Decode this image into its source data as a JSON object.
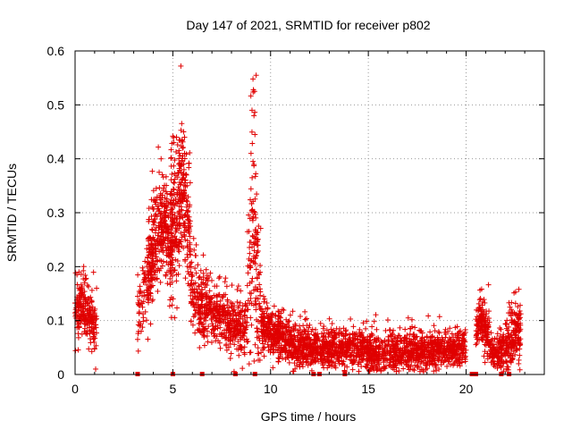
{
  "chart_data": {
    "type": "scatter",
    "title": "Day 147 of 2021, SRMTID for receiver p802",
    "xlabel": "GPS time / hours",
    "ylabel": "SRMTID / TECUs",
    "xlim": [
      0,
      24
    ],
    "ylim": [
      0,
      0.6
    ],
    "xticks": [
      0,
      5,
      10,
      15,
      20
    ],
    "yticks": [
      0,
      0.1,
      0.2,
      0.3,
      0.4,
      0.5,
      0.6
    ],
    "grid": true,
    "marker": "+",
    "series_color": "#e00000",
    "zero_markers_x": [
      3.2,
      5.0,
      6.5,
      8.2,
      9.2,
      12.2,
      12.5,
      13.8,
      20.3,
      20.5,
      21.8,
      22.2
    ],
    "segments": [
      {
        "x0": 0.0,
        "x1": 1.1,
        "n": 220,
        "bands": [
          [
            0.0,
            0.1
          ],
          [
            0.3,
            0.13
          ],
          [
            0.6,
            0.12
          ],
          [
            1.0,
            0.09
          ]
        ],
        "spread": 0.028
      },
      {
        "x0": 3.2,
        "x1": 4.0,
        "n": 90,
        "bands": [
          [
            3.2,
            0.12
          ],
          [
            3.5,
            0.15
          ],
          [
            4.0,
            0.2
          ]
        ],
        "spread": 0.035
      },
      {
        "x0": 3.7,
        "x1": 5.0,
        "n": 330,
        "bands": [
          [
            3.7,
            0.2
          ],
          [
            4.2,
            0.26
          ],
          [
            4.6,
            0.28
          ],
          [
            5.0,
            0.22
          ]
        ],
        "spread": 0.045
      },
      {
        "x0": 4.9,
        "x1": 5.9,
        "n": 280,
        "bands": [
          [
            4.9,
            0.3
          ],
          [
            5.2,
            0.28
          ],
          [
            5.5,
            0.36
          ],
          [
            5.8,
            0.27
          ]
        ],
        "spread": 0.06
      },
      {
        "x0": 5.9,
        "x1": 7.0,
        "n": 200,
        "bands": [
          [
            5.9,
            0.16
          ],
          [
            6.5,
            0.12
          ],
          [
            7.0,
            0.12
          ]
        ],
        "spread": 0.035
      },
      {
        "x0": 7.0,
        "x1": 8.8,
        "n": 300,
        "bands": [
          [
            7.0,
            0.1
          ],
          [
            7.5,
            0.12
          ],
          [
            8.0,
            0.08
          ],
          [
            8.8,
            0.09
          ]
        ],
        "spread": 0.028
      },
      {
        "x0": 8.8,
        "x1": 9.5,
        "n": 140,
        "bands": [
          [
            8.8,
            0.14
          ],
          [
            9.1,
            0.28
          ],
          [
            9.4,
            0.16
          ]
        ],
        "spread": 0.09
      },
      {
        "x0": 9.5,
        "x1": 12.0,
        "n": 500,
        "bands": [
          [
            9.5,
            0.09
          ],
          [
            10.5,
            0.07
          ],
          [
            11.5,
            0.05
          ],
          [
            12.0,
            0.06
          ]
        ],
        "spread": 0.022
      },
      {
        "x0": 12.0,
        "x1": 20.0,
        "n": 1400,
        "bands": [
          [
            12.0,
            0.05
          ],
          [
            14.0,
            0.05
          ],
          [
            16.0,
            0.04
          ],
          [
            18.0,
            0.045
          ],
          [
            20.0,
            0.05
          ]
        ],
        "spread": 0.018
      },
      {
        "x0": 20.5,
        "x1": 21.2,
        "n": 160,
        "bands": [
          [
            20.5,
            0.08
          ],
          [
            20.8,
            0.1
          ],
          [
            21.2,
            0.06
          ]
        ],
        "spread": 0.022
      },
      {
        "x0": 21.2,
        "x1": 22.0,
        "n": 130,
        "bands": [
          [
            21.2,
            0.05
          ],
          [
            21.6,
            0.04
          ],
          [
            22.0,
            0.05
          ]
        ],
        "spread": 0.018
      },
      {
        "x0": 22.0,
        "x1": 22.8,
        "n": 180,
        "bands": [
          [
            22.0,
            0.05
          ],
          [
            22.4,
            0.07
          ],
          [
            22.8,
            0.09
          ]
        ],
        "spread": 0.025
      }
    ],
    "extra_points": [
      [
        9.1,
        0.548
      ],
      [
        9.12,
        0.528
      ],
      [
        9.18,
        0.525
      ],
      [
        9.05,
        0.49
      ],
      [
        9.15,
        0.48
      ],
      [
        9.2,
        0.445
      ],
      [
        5.0,
        0.442
      ],
      [
        5.55,
        0.45
      ],
      [
        5.6,
        0.44
      ],
      [
        5.5,
        0.42
      ],
      [
        5.6,
        0.41
      ],
      [
        4.4,
        0.4
      ],
      [
        5.05,
        0.43
      ],
      [
        9.0,
        0.41
      ],
      [
        9.1,
        0.395
      ],
      [
        4.3,
        0.375
      ],
      [
        5.7,
        0.37
      ],
      [
        22.7,
        0.158
      ],
      [
        1.1,
        0.16
      ],
      [
        3.2,
        0.065
      ],
      [
        0.1,
        0.185
      ],
      [
        0.2,
        0.19
      ]
    ]
  }
}
